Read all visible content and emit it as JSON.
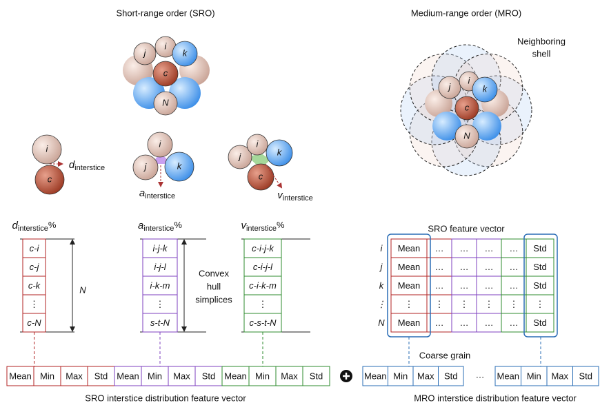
{
  "sro": {
    "title": "Short-range order (SRO)",
    "cluster": [
      "j",
      "i",
      "k",
      "c",
      "N"
    ],
    "pair": {
      "atoms": [
        "i",
        "c"
      ],
      "label": {
        "symbol": "d",
        "subscript": "interstice"
      }
    },
    "triangle": {
      "atoms": [
        "i",
        "j",
        "k"
      ],
      "label": {
        "symbol": "a",
        "subscript": "interstice"
      }
    },
    "tetrahedron": {
      "atoms": [
        "j",
        "i",
        "k",
        "c"
      ],
      "label": {
        "symbol": "v",
        "subscript": "interstice"
      }
    },
    "columns": [
      {
        "symbol": "d",
        "subscript": "interstice",
        "suffix": "%",
        "cells": [
          "c-i",
          "c-j",
          "c-k",
          "⋮",
          "c-N"
        ]
      },
      {
        "symbol": "a",
        "subscript": "interstice",
        "suffix": "%",
        "cells": [
          "i-j-k",
          "i-j-l",
          "i-k-m",
          "⋮",
          "s-t-N"
        ]
      },
      {
        "symbol": "v",
        "subscript": "interstice",
        "suffix": "%",
        "cells": [
          "c-i-j-k",
          "c-i-j-l",
          "c-i-k-m",
          "⋮",
          "c-s-t-N"
        ]
      }
    ],
    "n_label": "N",
    "simplices_label": [
      "Convex",
      "hull",
      "simplices"
    ],
    "vector": {
      "cells": [
        "Mean",
        "Min",
        "Max",
        "Std",
        "Mean",
        "Min",
        "Max",
        "Std",
        "Mean",
        "Min",
        "Max",
        "Std"
      ],
      "caption": "SRO interstice distribution feature vector"
    }
  },
  "mro": {
    "title": "Medium-range order (MRO)",
    "shell_label": [
      "Neighboring",
      "shell"
    ],
    "cluster": [
      "j",
      "i",
      "k",
      "c",
      "N"
    ],
    "feature_table": {
      "title": "SRO feature vector",
      "row_labels": [
        "i",
        "j",
        "k",
        "⋮",
        "N"
      ],
      "rows": [
        [
          "Mean",
          "…",
          "…",
          "…",
          "…",
          "Std"
        ],
        [
          "Mean",
          "…",
          "…",
          "…",
          "…",
          "Std"
        ],
        [
          "Mean",
          "…",
          "…",
          "…",
          "…",
          "Std"
        ],
        [
          "⋮",
          "⋮",
          "⋮",
          "⋮",
          "⋮",
          "⋮"
        ],
        [
          "Mean",
          "…",
          "…",
          "…",
          "…",
          "Std"
        ]
      ]
    },
    "coarse_grain": "Coarse grain",
    "vector": {
      "left": [
        "Mean",
        "Min",
        "Max",
        "Std"
      ],
      "ellipsis": "…",
      "right": [
        "Mean",
        "Min",
        "Max",
        "Std"
      ],
      "caption": "MRO interstice distribution feature vector"
    }
  }
}
